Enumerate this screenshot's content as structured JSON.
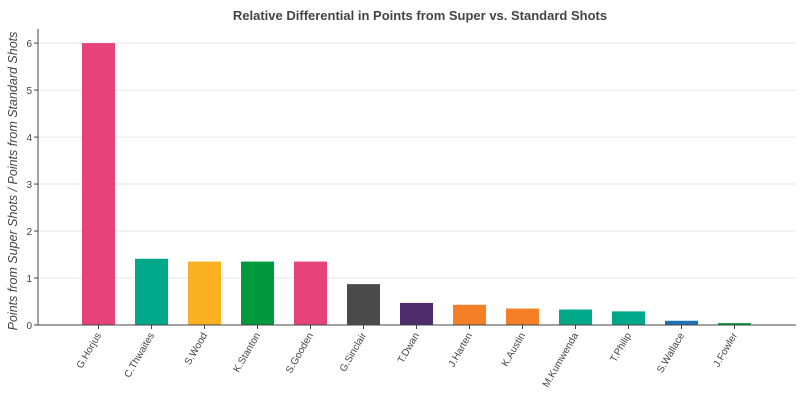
{
  "chart_data": {
    "type": "bar",
    "title": "Relative Differential in Points from Super vs. Standard Shots",
    "xlabel": "",
    "ylabel": "Points from Super Shots / Points from Standard Shots",
    "ylim": [
      0,
      6.3
    ],
    "yticks": [
      0,
      1,
      2,
      3,
      4,
      5,
      6
    ],
    "grid": "horizontal",
    "categories": [
      "G.Horjus",
      "C.Thwaites",
      "S.Wood",
      "K.Stanton",
      "S.Gooden",
      "G.Sinclair",
      "T.Dwan",
      "J.Harten",
      "K.Austin",
      "M.Kumwenda",
      "T.Philip",
      "S.Wallace",
      "J.Fowler"
    ],
    "values": [
      6.0,
      1.41,
      1.35,
      1.35,
      1.35,
      0.87,
      0.47,
      0.43,
      0.35,
      0.33,
      0.29,
      0.09,
      0.04
    ],
    "colors": [
      "#e5437a",
      "#00a88a",
      "#fbb021",
      "#009a3d",
      "#e5437a",
      "#4a4a4a",
      "#4f2c6b",
      "#f57f26",
      "#f57f26",
      "#00a88a",
      "#00a88a",
      "#1c73b8",
      "#009a3d"
    ]
  }
}
